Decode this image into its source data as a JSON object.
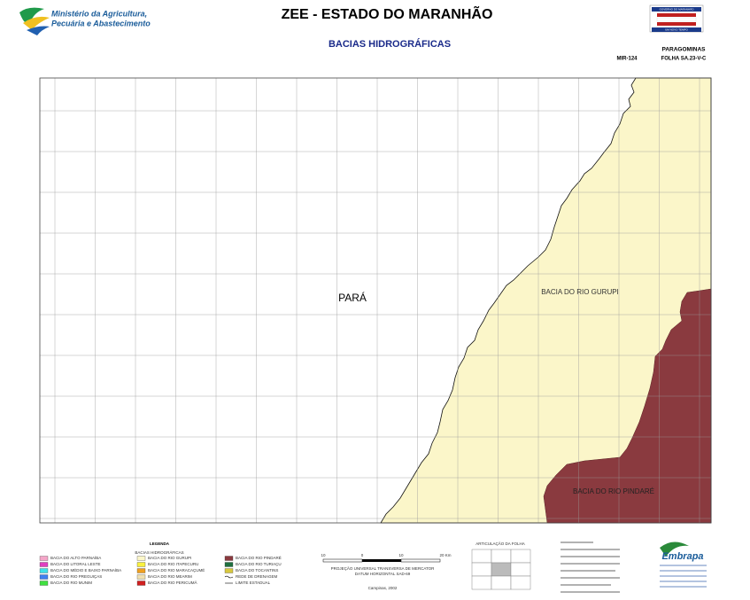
{
  "header": {
    "ministry": [
      "Ministério da Agricultura,",
      "Pecuária e Abastecimento"
    ],
    "title": "ZEE - ESTADO DO MARANHÃO",
    "subtitle": "BACIAS HIDROGRÁFICAS",
    "state_logo": [
      "GOVERNO DO MARANHÃO",
      "UM NOVO TEMPO"
    ],
    "sheet_name": "PARAGOMINAS",
    "sheet_mir": "MIR-124",
    "sheet_code": "FOLHA SA.23-V-C"
  },
  "map": {
    "labels": {
      "para": "PARÁ",
      "gurupi": "BACIA DO RIO GURUPI",
      "pindare": "BACIA DO RIO PINDARÉ"
    },
    "colors": {
      "gurupi": "#fbf6c9",
      "pindare": "#8a3a3f",
      "outside": "#ffffff"
    }
  },
  "legend": {
    "title": "LEGENDA",
    "subtitle": "BACIAS HIDROGRÁFICAS",
    "items": [
      {
        "label": "BACIA DO ALTO PARNAÍBA",
        "color": "#f4a6c8"
      },
      {
        "label": "BACIA DO LITORAL LESTE",
        "color": "#e040c0"
      },
      {
        "label": "BACIA DO MÉDIO E BAIXO PARNAÍBA",
        "color": "#40e0e8"
      },
      {
        "label": "BACIA DO RIO PREGUIÇAS",
        "color": "#4080f0"
      },
      {
        "label": "BACIA DO RIO MUNIM",
        "color": "#40e040"
      },
      {
        "label": "BACIA DO RIO GURUPI",
        "color": "#fbf6c9"
      },
      {
        "label": "BACIA DO RIO ITAPECURU",
        "color": "#f8f040"
      },
      {
        "label": "BACIA DO RIO MARACAÇUMÉ",
        "color": "#f0a020"
      },
      {
        "label": "BACIA DO RIO MEARIM",
        "color": "#f0e0b0"
      },
      {
        "label": "BACIA DO RIO PERICUMÃ",
        "color": "#d02020"
      },
      {
        "label": "BACIA DO RIO PINDARÉ",
        "color": "#8a3a3f"
      },
      {
        "label": "BACIA DO RIO TURIAÇU",
        "color": "#207040"
      },
      {
        "label": "BACIA DO TOCANTINS",
        "color": "#d8c840"
      }
    ],
    "lines": [
      "REDE DE DRENAGEM",
      "LIMITE ESTADUAL"
    ]
  },
  "scale": {
    "ticks": [
      "10",
      "0",
      "10",
      "20 Km"
    ],
    "notes": [
      "PROJEÇÃO UNIVERSAL TRANSVERSA DE MERCATOR",
      "DATUM HORIZONTAL SAD-69",
      "Campinas, 2002"
    ]
  },
  "articulation": {
    "title": "ARTICULAÇÃO DA FOLHA"
  },
  "footer": {
    "embrapa": "Embrapa"
  }
}
